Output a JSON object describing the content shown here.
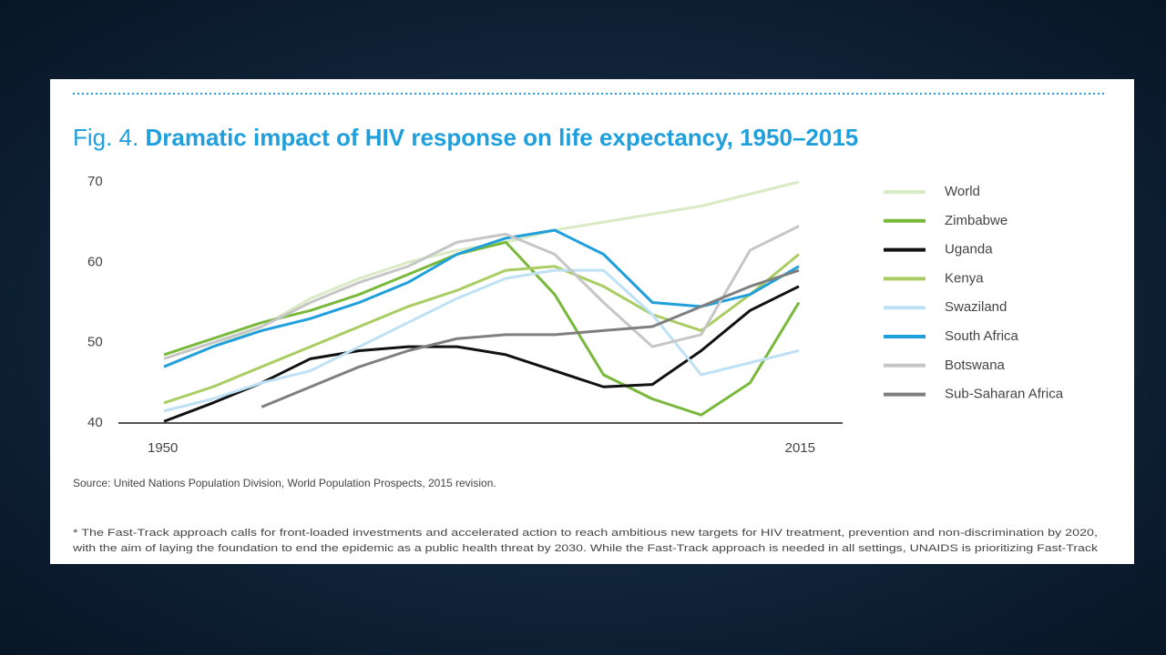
{
  "chart_data": {
    "type": "line",
    "fig_label": "Fig. 4.",
    "title": "Dramatic impact of HIV response on life expectancy, 1950–2015",
    "x": [
      1950,
      1955,
      1960,
      1965,
      1970,
      1975,
      1980,
      1985,
      1990,
      1995,
      2000,
      2005,
      2010,
      2015
    ],
    "xlim": [
      1950,
      2015
    ],
    "xticks": [
      1950,
      2015
    ],
    "ylim": [
      40,
      70
    ],
    "yticks": [
      40,
      50,
      60,
      70
    ],
    "grid": false,
    "legend": "right",
    "series": [
      {
        "name": "World",
        "color": "#d9eac4",
        "values": [
          47,
          49.5,
          52,
          55.5,
          58,
          60,
          61.5,
          62.5,
          64,
          65,
          66,
          67,
          68.5,
          70
        ]
      },
      {
        "name": "Zimbabwe",
        "color": "#78b83a",
        "values": [
          48.5,
          50.5,
          52.5,
          54,
          56,
          58.5,
          61,
          62.5,
          56,
          46,
          43,
          41,
          45,
          55
        ]
      },
      {
        "name": "Uganda",
        "color": "#111111",
        "values": [
          40.2,
          42.5,
          45,
          48,
          49,
          49.5,
          49.5,
          48.5,
          46.5,
          44.5,
          44.8,
          49,
          54,
          57
        ]
      },
      {
        "name": "Kenya",
        "color": "#a9cd62",
        "values": [
          42.5,
          44.5,
          47,
          49.5,
          52,
          54.5,
          56.5,
          59,
          59.5,
          57,
          53.5,
          51.5,
          56,
          61
        ]
      },
      {
        "name": "Swaziland",
        "color": "#bfe1f5",
        "values": [
          41.5,
          43,
          45,
          46.5,
          49.5,
          52.5,
          55.5,
          58,
          59,
          59,
          53.5,
          46,
          47.5,
          49
        ]
      },
      {
        "name": "South Africa",
        "color": "#1f9fdc",
        "values": [
          47,
          49.5,
          51.5,
          53,
          55,
          57.5,
          61,
          63,
          64,
          61,
          55,
          54.5,
          56,
          59.5
        ]
      },
      {
        "name": "Botswana",
        "color": "#c6c6c6",
        "values": [
          48,
          50,
          52,
          55,
          57.5,
          59.5,
          62.5,
          63.5,
          61,
          55,
          49.5,
          51,
          61.5,
          64.5
        ]
      },
      {
        "name": "Sub-Saharan Africa",
        "color": "#7f7f7f",
        "values": [
          null,
          null,
          42,
          44.5,
          47,
          49,
          50.5,
          51,
          51,
          51.5,
          52,
          54.5,
          57,
          59
        ]
      }
    ],
    "source": "Source: United Nations Population Division, World Population Prospects, 2015 revision.",
    "footnotes": [
      "* The Fast-Track approach calls for front-loaded investments and accelerated action to reach ambitious new targets for HIV treatment, prevention and non-discrimination by 2020,",
      "with the aim of laying the foundation to end the epidemic as a public health threat by 2030. While the Fast-Track approach is needed in all settings, UNAIDS is prioritizing Fast-Track"
    ]
  }
}
